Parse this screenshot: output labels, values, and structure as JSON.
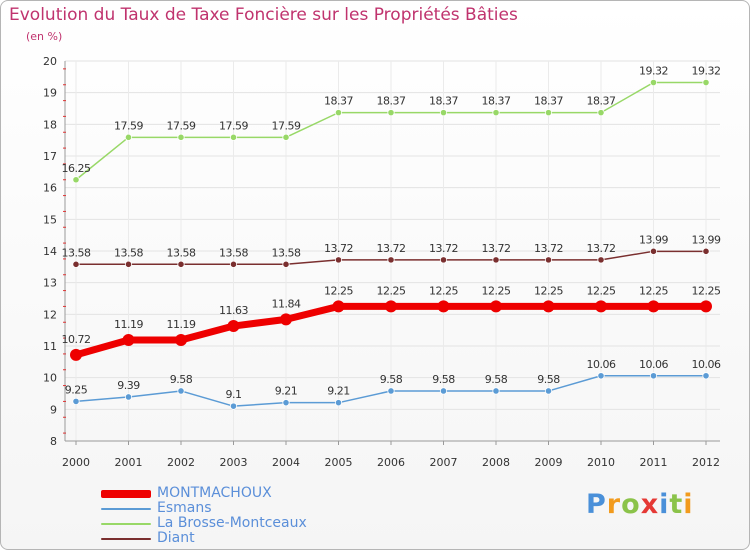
{
  "title": "Evolution du Taux de Taxe Foncière sur les Propriétés Bâties",
  "unit_label": "(en %)",
  "logo_text": "Proxiti",
  "chart_data": {
    "type": "line",
    "categories": [
      "2000",
      "2001",
      "2002",
      "2003",
      "2004",
      "2005",
      "2006",
      "2007",
      "2008",
      "2009",
      "2010",
      "2011",
      "2012"
    ],
    "ylim": [
      8,
      20
    ],
    "yticks": [
      "8",
      "9",
      "10",
      "11",
      "12",
      "13",
      "14",
      "15",
      "16",
      "17",
      "18",
      "19",
      "20"
    ],
    "grid": true,
    "legend_position": "bottom-left",
    "series": [
      {
        "name": "La Brosse-Montceaux",
        "color": "#98d867",
        "values": [
          16.25,
          17.59,
          17.59,
          17.59,
          17.59,
          18.37,
          18.37,
          18.37,
          18.37,
          18.37,
          18.37,
          19.32,
          19.32
        ],
        "labels": [
          "16.25",
          "17.59",
          "17.59",
          "17.59",
          "17.59",
          "18.37",
          "18.37",
          "18.37",
          "18.37",
          "18.37",
          "18.37",
          "19.32",
          "19.32"
        ]
      },
      {
        "name": "Diant",
        "color": "#7a2f2f",
        "values": [
          13.58,
          13.58,
          13.58,
          13.58,
          13.58,
          13.72,
          13.72,
          13.72,
          13.72,
          13.72,
          13.72,
          13.99,
          13.99
        ],
        "labels": [
          "13.58",
          "13.58",
          "13.58",
          "13.58",
          "13.58",
          "13.72",
          "13.72",
          "13.72",
          "13.72",
          "13.72",
          "13.72",
          "13.99",
          "13.99"
        ]
      },
      {
        "name": "MONTMACHOUX",
        "color": "#ee0000",
        "values": [
          10.72,
          11.19,
          11.19,
          11.63,
          11.84,
          12.25,
          12.25,
          12.25,
          12.25,
          12.25,
          12.25,
          12.25,
          12.25
        ],
        "labels": [
          "10.72",
          "11.19",
          "11.19",
          "11.63",
          "11.84",
          "12.25",
          "12.25",
          "12.25",
          "12.25",
          "12.25",
          "12.25",
          "12.25",
          "12.25"
        ]
      },
      {
        "name": "Esmans",
        "color": "#5b9bd5",
        "values": [
          9.25,
          9.39,
          9.58,
          9.1,
          9.21,
          9.21,
          9.58,
          9.58,
          9.58,
          9.58,
          10.06,
          10.06,
          10.06
        ],
        "labels": [
          "9.25",
          "9.39",
          "9.58",
          "9.1",
          "9.21",
          "9.21",
          "9.58",
          "9.58",
          "9.58",
          "9.58",
          "10.06",
          "10.06",
          "10.06"
        ]
      }
    ]
  },
  "legend": [
    {
      "label": "MONTMACHOUX",
      "color": "#ee0000",
      "text_color": "#5b8fd9",
      "weight": "bold"
    },
    {
      "label": "Esmans",
      "color": "#5b9bd5",
      "text_color": "#5b8fd9",
      "weight": "normal"
    },
    {
      "label": "La Brosse-Montceaux",
      "color": "#98d867",
      "text_color": "#5b8fd9",
      "weight": "normal"
    },
    {
      "label": "Diant",
      "color": "#7a2f2f",
      "text_color": "#5b8fd9",
      "weight": "normal"
    }
  ],
  "logo_colors": [
    "#4a90d9",
    "#f29b1d",
    "#8bc34a",
    "#e53935",
    "#4a90d9",
    "#8bc34a",
    "#f29b1d"
  ]
}
